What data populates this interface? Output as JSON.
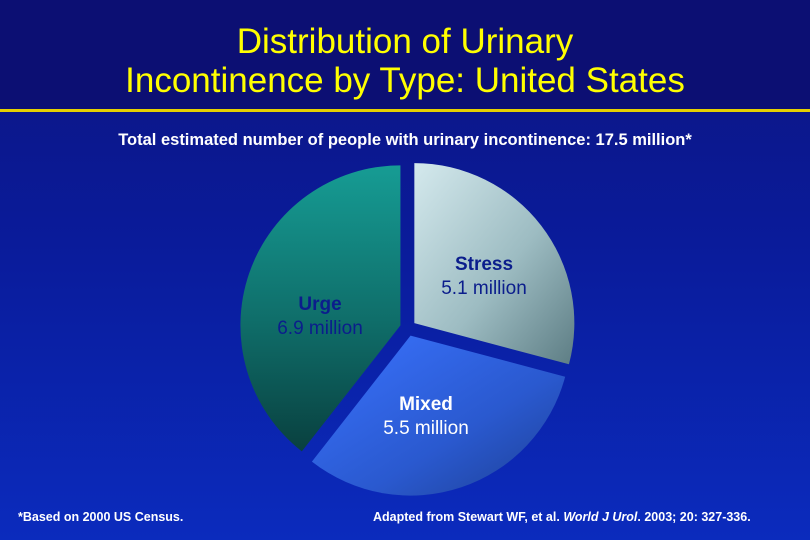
{
  "title": {
    "line1": "Distribution of Urinary",
    "line2": "Incontinence by Type: United States"
  },
  "subtitle": "Total estimated number of people with urinary incontinence: 17.5 million*",
  "colors": {
    "title": "#ffff00",
    "urge": "#0d5c59",
    "stress": "#a9c9cf",
    "mixed": "#2f62e0"
  },
  "chart_data": {
    "type": "pie",
    "title": "Distribution of Urinary Incontinence by Type: United States",
    "unit": "million",
    "slices": [
      {
        "name": "Stress",
        "value": 5.1,
        "value_label": "5.1 million"
      },
      {
        "name": "Mixed",
        "value": 5.5,
        "value_label": "5.5 million"
      },
      {
        "name": "Urge",
        "value": 6.9,
        "value_label": "6.9 million"
      }
    ],
    "total_label": "17.5 million*"
  },
  "footnotes": {
    "left": "*Based on 2000 US Census.",
    "right_prefix": "Adapted from Stewart WF, et al. ",
    "right_journal": "World J Urol",
    "right_suffix": ". 2003; 20: 327-336."
  }
}
